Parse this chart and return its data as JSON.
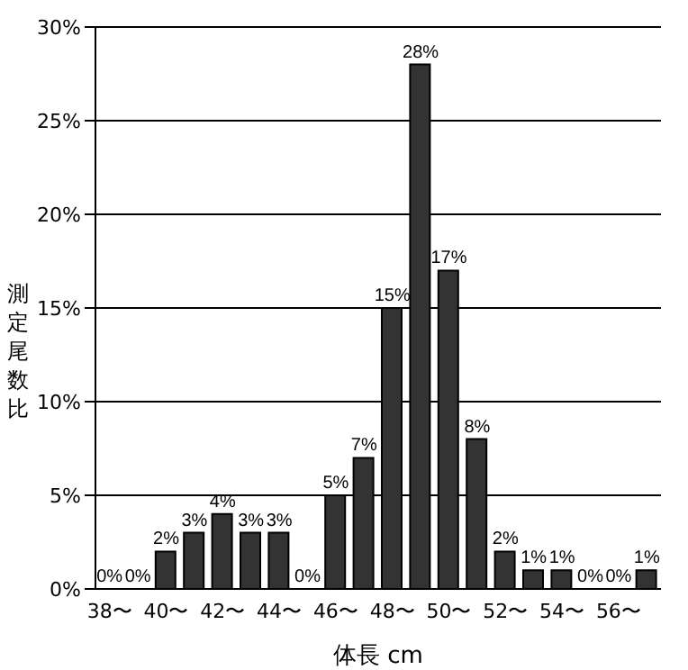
{
  "chart_data": {
    "type": "bar",
    "xlabel": "体長 cm",
    "ylabel": "測定尾数比",
    "categories": [
      "38〜",
      null,
      "40〜",
      null,
      "42〜",
      null,
      "44〜",
      null,
      "46〜",
      null,
      "48〜",
      null,
      "50〜",
      null,
      "52〜",
      null,
      "54〜",
      null,
      "56〜",
      null
    ],
    "values": [
      0,
      0,
      2,
      3,
      4,
      3,
      3,
      0,
      5,
      7,
      15,
      28,
      17,
      8,
      2,
      1,
      1,
      0,
      0,
      1
    ],
    "value_labels": [
      "0%",
      "0%",
      "2%",
      "3%",
      "4%",
      "3%",
      "3%",
      "0%",
      "5%",
      "7%",
      "15%",
      "28%",
      "17%",
      "8%",
      "2%",
      "1%",
      "1%",
      "0%",
      "0%",
      "1%"
    ],
    "color": "#333333",
    "ylim": [
      0,
      30
    ],
    "yticks": [
      {
        "value": 0,
        "label": "0%"
      },
      {
        "value": 5,
        "label": "5%"
      },
      {
        "value": 10,
        "label": "10%"
      },
      {
        "value": 15,
        "label": "15%"
      },
      {
        "value": 20,
        "label": "20%"
      },
      {
        "value": 25,
        "label": "25%"
      },
      {
        "value": 30,
        "label": "30%"
      }
    ],
    "grid": "y",
    "legend": false
  }
}
